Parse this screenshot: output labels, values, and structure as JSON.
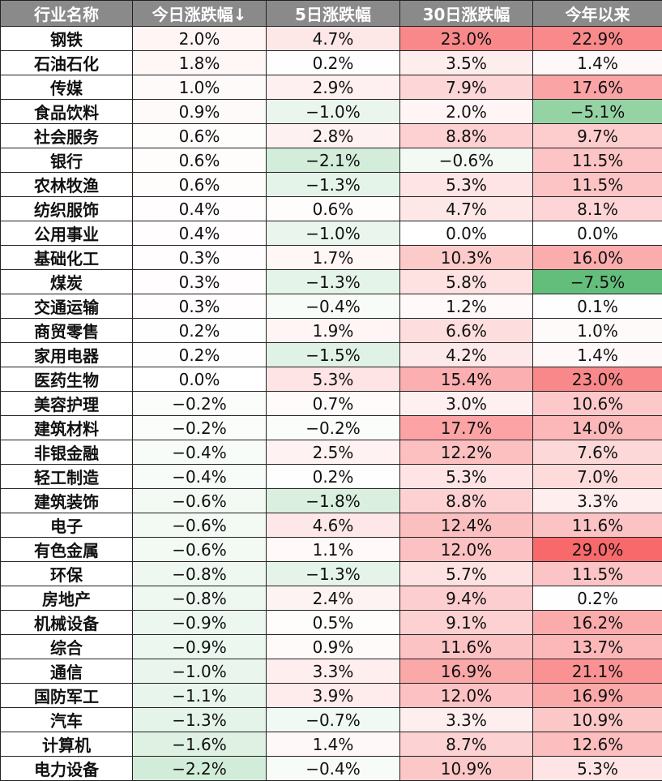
{
  "table": {
    "header": [
      "行业名称",
      "今日涨跌幅↓",
      "5日涨跌幅",
      "30日涨跌幅",
      "今年以来"
    ],
    "rows": [
      [
        "钢铁",
        "2.0%",
        "4.7%",
        "23.0%",
        "22.9%"
      ],
      [
        "石油石化",
        "1.8%",
        "0.2%",
        "3.5%",
        "1.4%"
      ],
      [
        "传媒",
        "1.0%",
        "2.9%",
        "7.9%",
        "17.6%"
      ],
      [
        "食品饮料",
        "0.9%",
        "−1.0%",
        "2.0%",
        "−5.1%"
      ],
      [
        "社会服务",
        "0.6%",
        "2.8%",
        "8.8%",
        "9.7%"
      ],
      [
        "银行",
        "0.6%",
        "−2.1%",
        "−0.6%",
        "11.5%"
      ],
      [
        "农林牧渔",
        "0.6%",
        "−1.3%",
        "5.3%",
        "11.5%"
      ],
      [
        "纺织服饰",
        "0.4%",
        "0.6%",
        "4.7%",
        "8.1%"
      ],
      [
        "公用事业",
        "0.4%",
        "−1.0%",
        "0.0%",
        "0.0%"
      ],
      [
        "基础化工",
        "0.3%",
        "1.7%",
        "10.3%",
        "16.0%"
      ],
      [
        "煤炭",
        "0.3%",
        "−1.3%",
        "5.8%",
        "−7.5%"
      ],
      [
        "交通运输",
        "0.3%",
        "−0.4%",
        "1.2%",
        "0.1%"
      ],
      [
        "商贸零售",
        "0.2%",
        "1.9%",
        "6.6%",
        "1.0%"
      ],
      [
        "家用电器",
        "0.2%",
        "−1.5%",
        "4.2%",
        "1.4%"
      ],
      [
        "医药生物",
        "0.0%",
        "5.3%",
        "15.4%",
        "23.0%"
      ],
      [
        "美容护理",
        "−0.2%",
        "0.7%",
        "3.0%",
        "10.6%"
      ],
      [
        "建筑材料",
        "−0.2%",
        "−0.2%",
        "17.7%",
        "14.0%"
      ],
      [
        "非银金融",
        "−0.4%",
        "2.5%",
        "12.2%",
        "7.6%"
      ],
      [
        "轻工制造",
        "−0.4%",
        "0.2%",
        "5.3%",
        "7.0%"
      ],
      [
        "建筑装饰",
        "−0.6%",
        "−1.8%",
        "8.8%",
        "3.3%"
      ],
      [
        "电子",
        "−0.6%",
        "4.6%",
        "12.4%",
        "11.6%"
      ],
      [
        "有色金属",
        "−0.6%",
        "1.1%",
        "12.0%",
        "29.0%"
      ],
      [
        "环保",
        "−0.8%",
        "−1.3%",
        "5.7%",
        "11.5%"
      ],
      [
        "房地产",
        "−0.8%",
        "2.4%",
        "9.4%",
        "0.2%"
      ],
      [
        "机械设备",
        "−0.9%",
        "0.5%",
        "9.1%",
        "16.2%"
      ],
      [
        "综合",
        "−0.9%",
        "0.9%",
        "11.6%",
        "13.7%"
      ],
      [
        "通信",
        "−1.0%",
        "3.3%",
        "16.9%",
        "21.1%"
      ],
      [
        "国防军工",
        "−1.1%",
        "3.9%",
        "12.0%",
        "16.9%"
      ],
      [
        "汽车",
        "−1.3%",
        "−0.7%",
        "3.3%",
        "10.9%"
      ],
      [
        "计算机",
        "−1.6%",
        "1.4%",
        "8.7%",
        "12.6%"
      ],
      [
        "电力设备",
        "−2.2%",
        "−0.4%",
        "10.9%",
        "5.3%"
      ]
    ]
  }
}
